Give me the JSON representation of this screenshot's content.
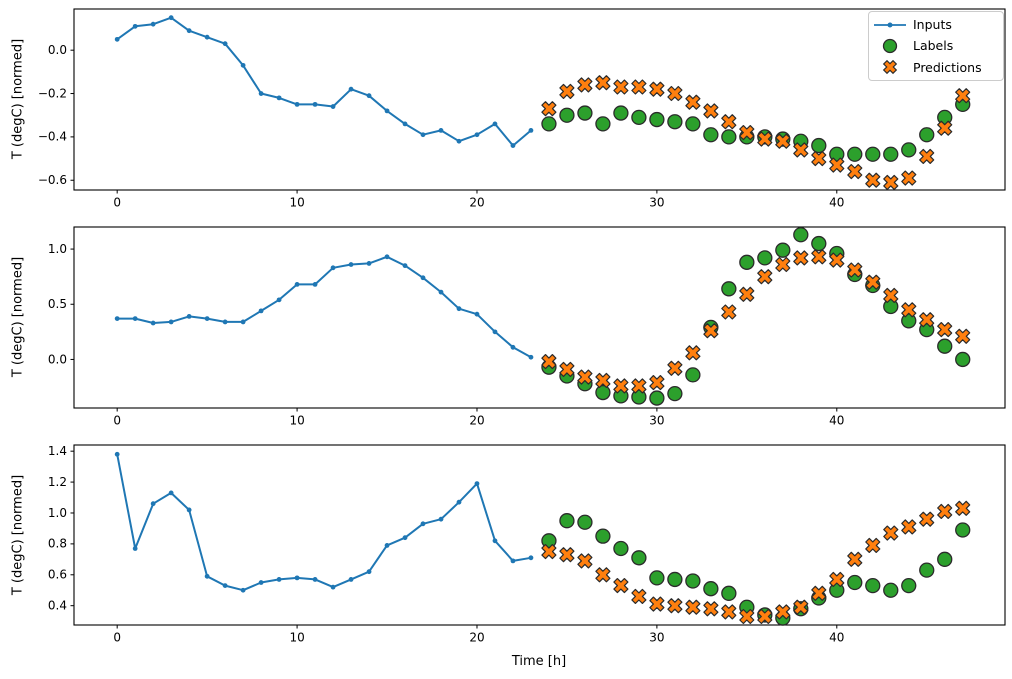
{
  "figure": {
    "xlabel": "Time [h]",
    "background": "#ffffff",
    "colors": {
      "inputs": "#1f77b4",
      "labels": "#2ca02c",
      "predictions": "#ff7f0e",
      "marker_edge": "#2b2b2b",
      "axis": "#000000",
      "legend_border": "#cccccc"
    },
    "legend": {
      "position": "upper-right-first-subplot"
    }
  },
  "chart_data": [
    {
      "type": "line+scatter",
      "ylabel": "T (degC) [normed]",
      "xticks": [
        0,
        10,
        20,
        30,
        40
      ],
      "yticks": [
        0.0,
        -0.2,
        -0.4,
        -0.6
      ],
      "xlim": [
        -2.4,
        49.35
      ],
      "ylim": [
        -0.645,
        0.19
      ],
      "grid": false,
      "series": [
        {
          "name": "Inputs",
          "marker": "dot-line",
          "x": [
            0,
            1,
            2,
            3,
            4,
            5,
            6,
            7,
            8,
            9,
            10,
            11,
            12,
            13,
            14,
            15,
            16,
            17,
            18,
            19,
            20,
            21,
            22,
            23
          ],
          "values": [
            0.05,
            0.11,
            0.12,
            0.15,
            0.09,
            0.06,
            0.03,
            -0.07,
            -0.2,
            -0.22,
            -0.25,
            -0.25,
            -0.26,
            -0.18,
            -0.21,
            -0.28,
            -0.34,
            -0.39,
            -0.37,
            -0.42,
            -0.39,
            -0.34,
            -0.44,
            -0.37
          ]
        },
        {
          "name": "Labels",
          "marker": "circle",
          "x": [
            24,
            25,
            26,
            27,
            28,
            29,
            30,
            31,
            32,
            33,
            34,
            35,
            36,
            37,
            38,
            39,
            40,
            41,
            42,
            43,
            44,
            45,
            46,
            47
          ],
          "values": [
            -0.34,
            -0.3,
            -0.29,
            -0.34,
            -0.29,
            -0.31,
            -0.32,
            -0.33,
            -0.34,
            -0.39,
            -0.4,
            -0.4,
            -0.4,
            -0.41,
            -0.42,
            -0.44,
            -0.48,
            -0.48,
            -0.48,
            -0.48,
            -0.46,
            -0.39,
            -0.31,
            -0.25
          ]
        },
        {
          "name": "Predictions",
          "marker": "X",
          "x": [
            24,
            25,
            26,
            27,
            28,
            29,
            30,
            31,
            32,
            33,
            34,
            35,
            36,
            37,
            38,
            39,
            40,
            41,
            42,
            43,
            44,
            45,
            46,
            47
          ],
          "values": [
            -0.27,
            -0.19,
            -0.16,
            -0.15,
            -0.17,
            -0.17,
            -0.18,
            -0.2,
            -0.24,
            -0.28,
            -0.33,
            -0.38,
            -0.41,
            -0.42,
            -0.46,
            -0.5,
            -0.53,
            -0.56,
            -0.6,
            -0.61,
            -0.59,
            -0.49,
            -0.36,
            -0.21
          ]
        }
      ]
    },
    {
      "type": "line+scatter",
      "ylabel": "T (degC) [normed]",
      "xticks": [
        0,
        10,
        20,
        30,
        40
      ],
      "yticks": [
        1.0,
        0.5,
        0.0
      ],
      "xlim": [
        -2.4,
        49.35
      ],
      "ylim": [
        -0.44,
        1.2
      ],
      "grid": false,
      "series": [
        {
          "name": "Inputs",
          "marker": "dot-line",
          "x": [
            0,
            1,
            2,
            3,
            4,
            5,
            6,
            7,
            8,
            9,
            10,
            11,
            12,
            13,
            14,
            15,
            16,
            17,
            18,
            19,
            20,
            21,
            22,
            23
          ],
          "values": [
            0.37,
            0.37,
            0.33,
            0.34,
            0.39,
            0.37,
            0.34,
            0.34,
            0.44,
            0.54,
            0.68,
            0.68,
            0.83,
            0.86,
            0.87,
            0.93,
            0.85,
            0.74,
            0.61,
            0.46,
            0.41,
            0.25,
            0.11,
            0.02
          ]
        },
        {
          "name": "Labels",
          "marker": "circle",
          "x": [
            24,
            25,
            26,
            27,
            28,
            29,
            30,
            31,
            32,
            33,
            34,
            35,
            36,
            37,
            38,
            39,
            40,
            41,
            42,
            43,
            44,
            45,
            46,
            47
          ],
          "values": [
            -0.07,
            -0.15,
            -0.22,
            -0.3,
            -0.33,
            -0.34,
            -0.35,
            -0.31,
            -0.14,
            0.29,
            0.64,
            0.88,
            0.92,
            0.99,
            1.13,
            1.05,
            0.96,
            0.77,
            0.67,
            0.48,
            0.35,
            0.27,
            0.12,
            0.0
          ]
        },
        {
          "name": "Predictions",
          "marker": "X",
          "x": [
            24,
            25,
            26,
            27,
            28,
            29,
            30,
            31,
            32,
            33,
            34,
            35,
            36,
            37,
            38,
            39,
            40,
            41,
            42,
            43,
            44,
            45,
            46,
            47
          ],
          "values": [
            -0.02,
            -0.09,
            -0.16,
            -0.19,
            -0.24,
            -0.24,
            -0.21,
            -0.08,
            0.06,
            0.26,
            0.43,
            0.59,
            0.75,
            0.86,
            0.92,
            0.93,
            0.9,
            0.81,
            0.7,
            0.58,
            0.45,
            0.36,
            0.27,
            0.21
          ]
        }
      ]
    },
    {
      "type": "line+scatter",
      "ylabel": "T (degC) [normed]",
      "xticks": [
        0,
        10,
        20,
        30,
        40
      ],
      "yticks": [
        1.4,
        1.2,
        1.0,
        0.8,
        0.6,
        0.4
      ],
      "xlim": [
        -2.4,
        49.35
      ],
      "ylim": [
        0.275,
        1.44
      ],
      "grid": false,
      "series": [
        {
          "name": "Inputs",
          "marker": "dot-line",
          "x": [
            0,
            1,
            2,
            3,
            4,
            5,
            6,
            7,
            8,
            9,
            10,
            11,
            12,
            13,
            14,
            15,
            16,
            17,
            18,
            19,
            20,
            21,
            22,
            23
          ],
          "values": [
            1.38,
            0.77,
            1.06,
            1.13,
            1.02,
            0.59,
            0.53,
            0.5,
            0.55,
            0.57,
            0.58,
            0.57,
            0.52,
            0.57,
            0.62,
            0.79,
            0.84,
            0.93,
            0.96,
            1.07,
            1.19,
            0.82,
            0.69,
            0.71
          ]
        },
        {
          "name": "Labels",
          "marker": "circle",
          "x": [
            24,
            25,
            26,
            27,
            28,
            29,
            30,
            31,
            32,
            33,
            34,
            35,
            36,
            37,
            38,
            39,
            40,
            41,
            42,
            43,
            44,
            45,
            46,
            47
          ],
          "values": [
            0.82,
            0.95,
            0.94,
            0.85,
            0.77,
            0.71,
            0.58,
            0.57,
            0.56,
            0.51,
            0.48,
            0.39,
            0.34,
            0.32,
            0.38,
            0.45,
            0.5,
            0.55,
            0.53,
            0.5,
            0.53,
            0.63,
            0.7,
            0.89
          ]
        },
        {
          "name": "Predictions",
          "marker": "X",
          "x": [
            24,
            25,
            26,
            27,
            28,
            29,
            30,
            31,
            32,
            33,
            34,
            35,
            36,
            37,
            38,
            39,
            40,
            41,
            42,
            43,
            44,
            45,
            46,
            47
          ],
          "values": [
            0.75,
            0.73,
            0.69,
            0.6,
            0.53,
            0.46,
            0.41,
            0.4,
            0.39,
            0.38,
            0.36,
            0.33,
            0.33,
            0.36,
            0.39,
            0.48,
            0.57,
            0.7,
            0.79,
            0.87,
            0.91,
            0.96,
            1.01,
            1.03
          ]
        }
      ]
    }
  ]
}
